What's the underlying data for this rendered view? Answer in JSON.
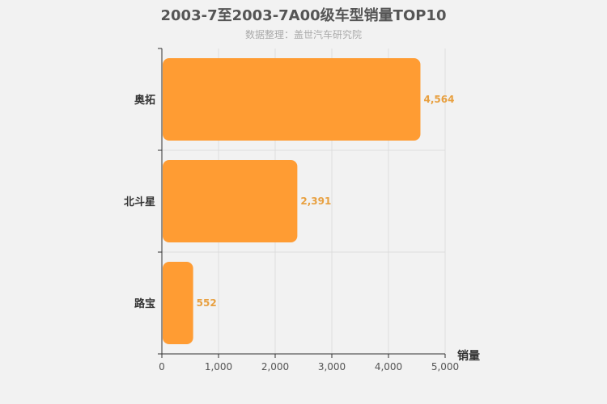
{
  "title": "2003-7至2003-7A00级车型销量TOP10",
  "subtitle": "数据整理：盖世汽车研究院",
  "colors": {
    "bar": "#ff9c33",
    "value_label": "#e8a040",
    "grid": "#dddddd",
    "background": "#f2f2f2"
  },
  "chart_data": {
    "type": "bar",
    "orientation": "horizontal",
    "categories": [
      "奥拓",
      "北斗星",
      "路宝"
    ],
    "values": [
      4564,
      2391,
      552
    ],
    "value_labels": [
      "4,564",
      "2,391",
      "552"
    ],
    "xlabel": "销量",
    "ylabel": "",
    "xlim": [
      0,
      5000
    ],
    "x_ticks": [
      0,
      1000,
      2000,
      3000,
      4000,
      5000
    ],
    "x_tick_labels": [
      "0",
      "1,000",
      "2,000",
      "3,000",
      "4,000",
      "5,000"
    ],
    "grid": true
  }
}
